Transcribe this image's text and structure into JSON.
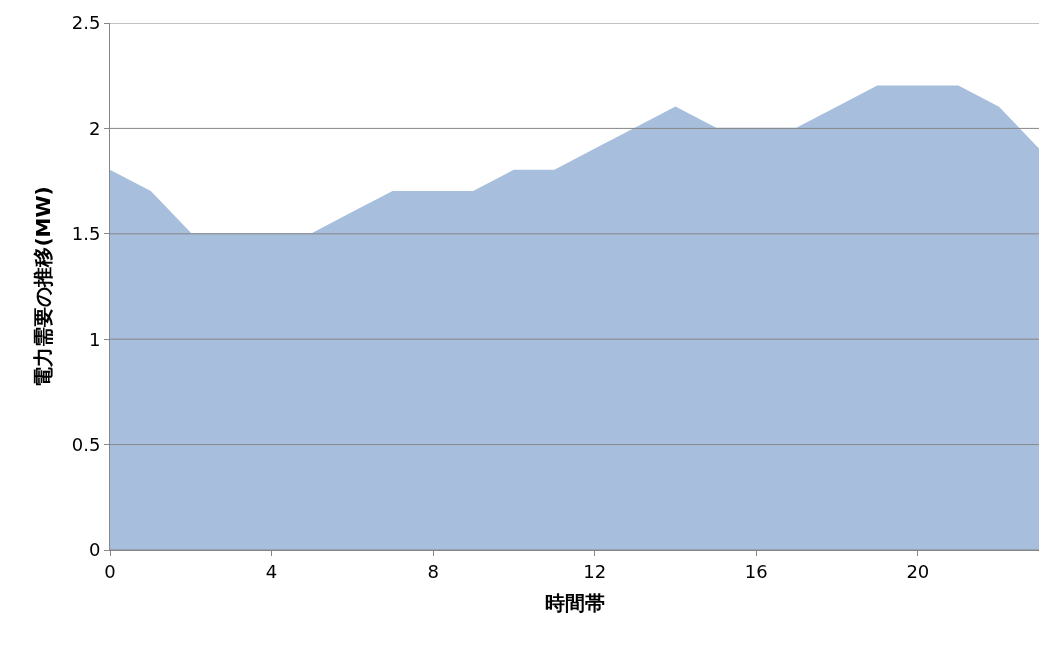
{
  "chart_data": {
    "type": "area",
    "xlabel": "時間帯",
    "ylabel": "電力需要の推移(MW)",
    "x": [
      0,
      1,
      2,
      3,
      4,
      5,
      6,
      7,
      8,
      9,
      10,
      11,
      12,
      13,
      14,
      15,
      16,
      17,
      18,
      19,
      20,
      21,
      22,
      23
    ],
    "series": [
      {
        "color": "#a7bfdd",
        "values": [
          1.8,
          1.7,
          1.5,
          1.5,
          1.5,
          1.5,
          1.6,
          1.7,
          1.7,
          1.7,
          1.8,
          1.8,
          1.9,
          2.0,
          2.1,
          2.0,
          2.0,
          2.0,
          2.1,
          2.2,
          2.2,
          2.2,
          2.1,
          1.9
        ]
      }
    ],
    "xlim": [
      0,
      23
    ],
    "xticks": [
      0,
      4,
      8,
      12,
      16,
      20
    ],
    "ylim": [
      0,
      2.5
    ],
    "yticks": [
      0,
      0.5,
      1,
      1.5,
      2,
      2.5
    ],
    "grid": "y"
  }
}
